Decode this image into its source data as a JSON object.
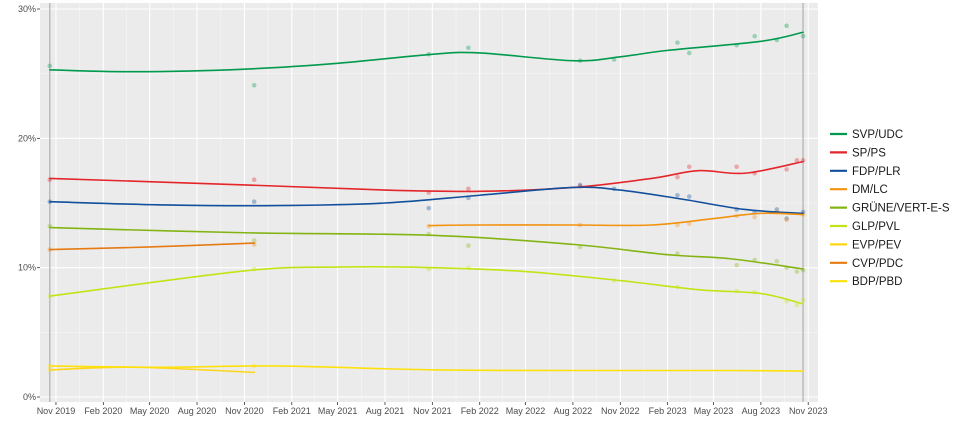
{
  "chart_data": {
    "type": "line",
    "title": "",
    "xlabel": "",
    "ylabel": "",
    "x_domain": [
      "2019-10-01",
      "2023-11-20"
    ],
    "ylim": [
      0,
      30
    ],
    "grid": true,
    "legend_position": "right",
    "y_ticks": [
      {
        "value": 0,
        "label": "0%"
      },
      {
        "value": 10,
        "label": "10%"
      },
      {
        "value": 20,
        "label": "20%"
      },
      {
        "value": 30,
        "label": "30%"
      }
    ],
    "x_ticks": [
      {
        "date": "2019-11-01",
        "label": "Nov 2019"
      },
      {
        "date": "2020-02-01",
        "label": "Feb 2020"
      },
      {
        "date": "2020-05-01",
        "label": "May 2020"
      },
      {
        "date": "2020-08-01",
        "label": "Aug 2020"
      },
      {
        "date": "2020-11-01",
        "label": "Nov 2020"
      },
      {
        "date": "2021-02-01",
        "label": "Feb 2021"
      },
      {
        "date": "2021-05-01",
        "label": "May 2021"
      },
      {
        "date": "2021-08-01",
        "label": "Aug 2021"
      },
      {
        "date": "2021-11-01",
        "label": "Nov 2021"
      },
      {
        "date": "2022-02-01",
        "label": "Feb 2022"
      },
      {
        "date": "2022-05-01",
        "label": "May 2022"
      },
      {
        "date": "2022-08-01",
        "label": "Aug 2022"
      },
      {
        "date": "2022-11-01",
        "label": "Nov 2022"
      },
      {
        "date": "2023-02-01",
        "label": "Feb 2023"
      },
      {
        "date": "2023-05-01",
        "label": "May 2023"
      },
      {
        "date": "2023-08-01",
        "label": "Aug 2023"
      },
      {
        "date": "2023-11-01",
        "label": "Nov 2023"
      }
    ],
    "election_dates": [
      "2019-10-20",
      "2023-10-22"
    ],
    "series": [
      {
        "name": "SVP/UDC",
        "color": "#009a4e",
        "trend": [
          [
            "2019-10-20",
            25.3
          ],
          [
            "2020-04-01",
            25.15
          ],
          [
            "2020-11-01",
            25.35
          ],
          [
            "2021-05-01",
            25.8
          ],
          [
            "2021-11-01",
            26.5
          ],
          [
            "2022-02-01",
            26.6
          ],
          [
            "2022-08-01",
            26.0
          ],
          [
            "2022-11-01",
            26.3
          ],
          [
            "2023-02-01",
            26.8
          ],
          [
            "2023-08-01",
            27.5
          ],
          [
            "2023-10-22",
            28.2
          ]
        ],
        "points": [
          [
            "2019-10-20",
            25.6
          ],
          [
            "2020-11-20",
            24.1
          ],
          [
            "2021-10-25",
            26.5
          ],
          [
            "2022-01-10",
            27.0
          ],
          [
            "2022-08-15",
            26.0
          ],
          [
            "2022-10-20",
            26.1
          ],
          [
            "2023-02-20",
            27.4
          ],
          [
            "2023-03-15",
            26.6
          ],
          [
            "2023-06-15",
            27.2
          ],
          [
            "2023-07-20",
            27.9
          ],
          [
            "2023-09-01",
            27.6
          ],
          [
            "2023-09-20",
            28.7
          ],
          [
            "2023-10-22",
            27.9
          ]
        ]
      },
      {
        "name": "SP/PS",
        "color": "#e3262a",
        "trend": [
          [
            "2019-10-20",
            16.9
          ],
          [
            "2020-11-01",
            16.4
          ],
          [
            "2021-08-01",
            16.0
          ],
          [
            "2022-02-01",
            15.9
          ],
          [
            "2022-08-01",
            16.2
          ],
          [
            "2023-01-01",
            16.9
          ],
          [
            "2023-04-01",
            17.5
          ],
          [
            "2023-07-01",
            17.3
          ],
          [
            "2023-10-22",
            18.2
          ]
        ],
        "points": [
          [
            "2019-10-20",
            16.8
          ],
          [
            "2020-11-20",
            16.8
          ],
          [
            "2021-10-25",
            15.8
          ],
          [
            "2022-01-10",
            16.1
          ],
          [
            "2022-08-15",
            16.3
          ],
          [
            "2023-02-20",
            17.0
          ],
          [
            "2023-03-15",
            17.8
          ],
          [
            "2023-06-15",
            17.8
          ],
          [
            "2023-07-20",
            17.3
          ],
          [
            "2023-09-20",
            17.6
          ],
          [
            "2023-10-10",
            18.3
          ],
          [
            "2023-10-22",
            18.3
          ]
        ]
      },
      {
        "name": "FDP/PLR",
        "color": "#124f9c",
        "trend": [
          [
            "2019-10-20",
            15.1
          ],
          [
            "2020-06-01",
            14.85
          ],
          [
            "2021-01-01",
            14.8
          ],
          [
            "2021-08-01",
            15.0
          ],
          [
            "2022-02-01",
            15.6
          ],
          [
            "2022-08-01",
            16.2
          ],
          [
            "2022-11-01",
            16.0
          ],
          [
            "2023-03-01",
            15.3
          ],
          [
            "2023-07-01",
            14.5
          ],
          [
            "2023-10-22",
            14.2
          ]
        ],
        "points": [
          [
            "2019-10-20",
            15.1
          ],
          [
            "2020-11-20",
            15.1
          ],
          [
            "2021-10-25",
            14.6
          ],
          [
            "2022-01-10",
            15.4
          ],
          [
            "2022-08-15",
            16.4
          ],
          [
            "2022-10-20",
            16.1
          ],
          [
            "2023-02-20",
            15.6
          ],
          [
            "2023-03-15",
            15.5
          ],
          [
            "2023-06-15",
            14.5
          ],
          [
            "2023-07-20",
            14.3
          ],
          [
            "2023-09-01",
            14.5
          ],
          [
            "2023-09-20",
            13.8
          ],
          [
            "2023-10-22",
            14.3
          ]
        ]
      },
      {
        "name": "DM/LC",
        "color": "#f3920f",
        "trend": [
          [
            "2021-10-25",
            13.25
          ],
          [
            "2022-02-01",
            13.3
          ],
          [
            "2022-08-01",
            13.3
          ],
          [
            "2023-01-01",
            13.3
          ],
          [
            "2023-05-01",
            13.8
          ],
          [
            "2023-08-01",
            14.2
          ],
          [
            "2023-10-22",
            14.1
          ]
        ],
        "points": [
          [
            "2021-10-25",
            13.2
          ],
          [
            "2022-08-15",
            13.3
          ],
          [
            "2023-02-20",
            13.3
          ],
          [
            "2023-03-15",
            13.4
          ],
          [
            "2023-06-15",
            14.0
          ],
          [
            "2023-07-20",
            13.9
          ],
          [
            "2023-09-01",
            14.3
          ],
          [
            "2023-09-20",
            13.7
          ],
          [
            "2023-10-22",
            14.1
          ]
        ]
      },
      {
        "name": "GRÜNE/VERT-E-S",
        "color": "#84b414",
        "trend": [
          [
            "2019-10-20",
            13.1
          ],
          [
            "2020-11-01",
            12.7
          ],
          [
            "2021-11-01",
            12.5
          ],
          [
            "2022-08-01",
            11.8
          ],
          [
            "2023-02-01",
            11.0
          ],
          [
            "2023-06-01",
            10.7
          ],
          [
            "2023-10-22",
            9.9
          ]
        ],
        "points": [
          [
            "2019-10-20",
            13.2
          ],
          [
            "2020-11-20",
            12.1
          ],
          [
            "2021-10-25",
            12.6
          ],
          [
            "2022-01-10",
            11.7
          ],
          [
            "2022-08-15",
            11.6
          ],
          [
            "2023-02-20",
            11.1
          ],
          [
            "2023-06-15",
            10.2
          ],
          [
            "2023-07-20",
            10.6
          ],
          [
            "2023-09-01",
            10.5
          ],
          [
            "2023-09-20",
            10.0
          ],
          [
            "2023-10-10",
            9.7
          ],
          [
            "2023-10-22",
            9.8
          ]
        ]
      },
      {
        "name": "GLP/PVL",
        "color": "#c4e317",
        "trend": [
          [
            "2019-10-20",
            7.8
          ],
          [
            "2020-11-01",
            9.75
          ],
          [
            "2021-05-01",
            10.05
          ],
          [
            "2021-11-01",
            10.0
          ],
          [
            "2022-05-01",
            9.7
          ],
          [
            "2022-11-01",
            9.0
          ],
          [
            "2023-04-01",
            8.3
          ],
          [
            "2023-08-01",
            8.0
          ],
          [
            "2023-10-22",
            7.2
          ]
        ],
        "points": [
          [
            "2019-10-20",
            7.8
          ],
          [
            "2020-11-20",
            9.9
          ],
          [
            "2021-10-25",
            9.9
          ],
          [
            "2022-01-10",
            10.0
          ],
          [
            "2022-10-20",
            9.0
          ],
          [
            "2023-02-20",
            8.5
          ],
          [
            "2023-06-15",
            8.2
          ],
          [
            "2023-07-20",
            8.1
          ],
          [
            "2023-09-20",
            7.4
          ],
          [
            "2023-10-10",
            7.1
          ],
          [
            "2023-10-22",
            7.5
          ]
        ]
      },
      {
        "name": "EVP/PEV",
        "color": "#ffd617",
        "trend": [
          [
            "2019-10-20",
            2.1
          ],
          [
            "2020-04-01",
            2.3
          ],
          [
            "2020-11-20",
            1.9
          ]
        ],
        "points": [
          [
            "2019-10-20",
            2.1
          ]
        ]
      },
      {
        "name": "CVP/PDC",
        "color": "#e57b12",
        "trend": [
          [
            "2019-10-20",
            11.4
          ],
          [
            "2020-05-01",
            11.6
          ],
          [
            "2020-11-20",
            11.9
          ]
        ],
        "points": [
          [
            "2019-10-20",
            11.4
          ],
          [
            "2020-11-20",
            11.8
          ]
        ]
      },
      {
        "name": "BDP/PBD",
        "color": "#fde10a",
        "trend": [
          [
            "2019-10-20",
            2.4
          ],
          [
            "2020-06-01",
            2.3
          ],
          [
            "2021-01-01",
            2.4
          ],
          [
            "2021-11-01",
            2.1
          ],
          [
            "2022-08-01",
            2.05
          ],
          [
            "2023-06-01",
            2.05
          ],
          [
            "2023-10-22",
            2.0
          ]
        ],
        "points": [
          [
            "2019-10-20",
            2.4
          ],
          [
            "2020-11-20",
            2.4
          ]
        ]
      }
    ]
  }
}
